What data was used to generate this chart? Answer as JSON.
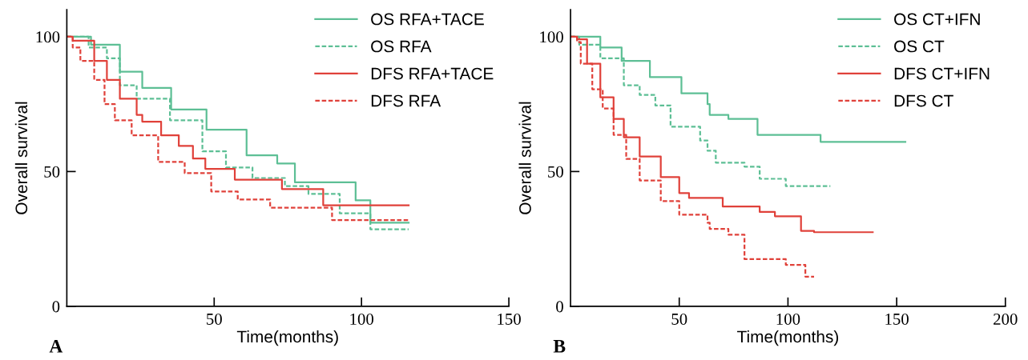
{
  "chart_data": [
    {
      "type": "step",
      "xlabel": "Time(months)",
      "ylabel": "Overall survival",
      "xlim": [
        0,
        150
      ],
      "ylim": [
        0,
        110
      ],
      "xticks": [
        50,
        100,
        150
      ],
      "yticks": [
        0,
        50,
        100
      ],
      "legend": "top right",
      "grid": false,
      "annotations": [
        "A"
      ],
      "series": [
        {
          "name": "OS RFA+TACE",
          "color": "#5dbf95",
          "line_style": "solid",
          "x": [
            0,
            8.2,
            18,
            25.6,
            35.4,
            47.4,
            61,
            71.4,
            77.4,
            98,
            103,
            116
          ],
          "values": [
            100,
            97,
            87,
            81,
            73,
            65.5,
            56,
            53,
            46,
            39.3,
            31,
            31
          ]
        },
        {
          "name": "OS RFA",
          "color": "#5dbf95",
          "line_style": "dashed",
          "x": [
            0,
            7.4,
            13.6,
            18,
            23.7,
            35,
            46,
            54,
            63,
            74,
            82,
            92.6,
            103,
            116
          ],
          "values": [
            100,
            96,
            92,
            82,
            77,
            69,
            57.5,
            51.5,
            47.6,
            44.6,
            41.7,
            34.5,
            28.6,
            28.6
          ]
        },
        {
          "name": "DFS RFA+TACE",
          "color": "#e0413a",
          "line_style": "solid",
          "x": [
            0,
            2,
            9.3,
            13.6,
            18,
            23.7,
            25.6,
            32,
            38,
            42.8,
            47,
            57,
            73,
            87,
            116
          ],
          "values": [
            100,
            98.5,
            91,
            84,
            77,
            71,
            68.5,
            63.4,
            59.5,
            54.8,
            51,
            47,
            43.5,
            37.5,
            37.5
          ]
        },
        {
          "name": "DFS RFA",
          "color": "#e0413a",
          "line_style": "dashed",
          "x": [
            0,
            2,
            4.6,
            9.3,
            12.8,
            16.3,
            22,
            31,
            40,
            49,
            58,
            69,
            90,
            116
          ],
          "values": [
            100,
            96,
            91,
            84,
            75,
            69,
            63.4,
            53.6,
            49.4,
            42.6,
            39.6,
            36.6,
            32,
            32
          ]
        }
      ]
    },
    {
      "type": "step",
      "xlabel": "Time(months)",
      "ylabel": "Overall survival",
      "xlim": [
        0,
        200
      ],
      "ylim": [
        0,
        110
      ],
      "xticks": [
        50,
        100,
        150,
        200
      ],
      "yticks": [
        0,
        50,
        100
      ],
      "legend": "top right",
      "grid": false,
      "annotations": [
        "B"
      ],
      "series": [
        {
          "name": "OS CT+IFN",
          "color": "#5dbf95",
          "line_style": "solid",
          "x": [
            0,
            3,
            13.7,
            23.5,
            36.5,
            51,
            63,
            64,
            72.6,
            86,
            115,
            154
          ],
          "values": [
            100,
            100,
            96,
            91,
            85,
            79,
            75,
            71,
            69.5,
            63.6,
            61,
            61
          ]
        },
        {
          "name": "OS CT",
          "color": "#5dbf95",
          "line_style": "dashed",
          "x": [
            0,
            4,
            13.7,
            24.5,
            31.8,
            39,
            46,
            59.6,
            63,
            66.8,
            80,
            87,
            99,
            119.5
          ],
          "values": [
            100,
            97,
            92,
            82,
            78.4,
            74.5,
            66.6,
            61.5,
            57.7,
            53.3,
            51.8,
            47.3,
            44.6,
            44.6
          ]
        },
        {
          "name": "DFS CT+IFN",
          "color": "#e0413a",
          "line_style": "solid",
          "x": [
            0,
            3,
            7.6,
            13.7,
            19.8,
            24.5,
            31.8,
            41.5,
            50,
            54.5,
            70,
            87,
            94,
            106,
            112,
            139
          ],
          "values": [
            100,
            99,
            90,
            77.5,
            69.5,
            62.7,
            55.6,
            47.9,
            42,
            40.2,
            37,
            35,
            33.4,
            28,
            27.5,
            27.5
          ]
        },
        {
          "name": "DFS CT",
          "color": "#e0413a",
          "line_style": "dashed",
          "x": [
            0,
            3,
            4.7,
            10,
            14.8,
            19.8,
            25.6,
            31.8,
            41.5,
            50,
            63,
            64,
            72.6,
            80,
            99,
            108,
            112
          ],
          "values": [
            100,
            98,
            90,
            80.5,
            73.4,
            63.6,
            54.7,
            46.7,
            39,
            34,
            31,
            28.7,
            26.6,
            17.5,
            15.4,
            11,
            11
          ]
        }
      ]
    }
  ]
}
